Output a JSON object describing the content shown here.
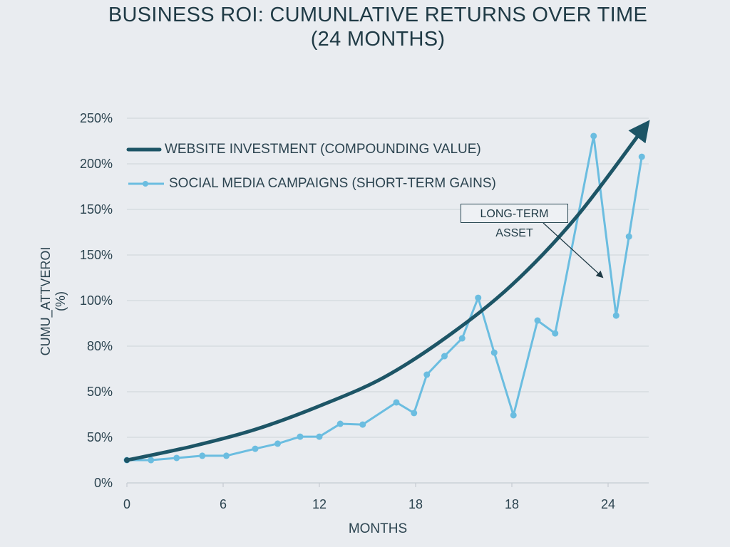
{
  "chart_data": {
    "type": "line",
    "title": "BUSINESS ROI: CUMUNLATIVE RETURNS OVER TIME (24 MONTHS)",
    "xlabel": "MONTHS",
    "ylabel": "CUMU_ATTVEROI (%)",
    "x_tick_labels": [
      "0",
      "6",
      "12",
      "18",
      "18",
      "24"
    ],
    "y_tick_labels": [
      "0%",
      "50%",
      "50%",
      "80%",
      "100%",
      "150%",
      "150%",
      "200%",
      "250%"
    ],
    "xlim": [
      0,
      32
    ],
    "ylim": [
      0,
      250
    ],
    "grid": "horizontal",
    "legend_position": "top-left",
    "series": [
      {
        "name": "WEBSITE INVESTMENT (COMPOUNDING VALUE)",
        "color": "#1d5566",
        "style": "thick smooth line with arrowhead",
        "x": [
          0,
          4,
          8,
          12,
          16,
          20,
          24,
          28,
          32.2
        ],
        "y": [
          15.6,
          24.9,
          36.6,
          52.7,
          72.2,
          100.5,
          135.7,
          182,
          243
        ]
      },
      {
        "name": "SOCIAL MEDIA CAMPAIGNS (SHORT-TERM GAINS)",
        "color": "#6bbde0",
        "style": "line with markers",
        "x": [
          0,
          1.5,
          3.1,
          4.7,
          6.2,
          8.0,
          9.4,
          10.8,
          12.0,
          13.3,
          14.7,
          16.8,
          17.9,
          18.7,
          19.8,
          20.9,
          21.9,
          22.9,
          24.1,
          25.6,
          26.7,
          29.1,
          30.5,
          31.3,
          32.1
        ],
        "y": [
          15.6,
          15.6,
          17.1,
          18.6,
          18.6,
          23.4,
          26.9,
          31.7,
          31.7,
          40.5,
          40.0,
          55.2,
          47.9,
          74.2,
          86.9,
          99.1,
          126.9,
          89.3,
          46.4,
          111.3,
          102.5,
          237.8,
          114.7,
          168.9,
          223.6
        ]
      }
    ],
    "annotations": [
      {
        "text": "LONG-TERM ASSET"
      }
    ]
  }
}
